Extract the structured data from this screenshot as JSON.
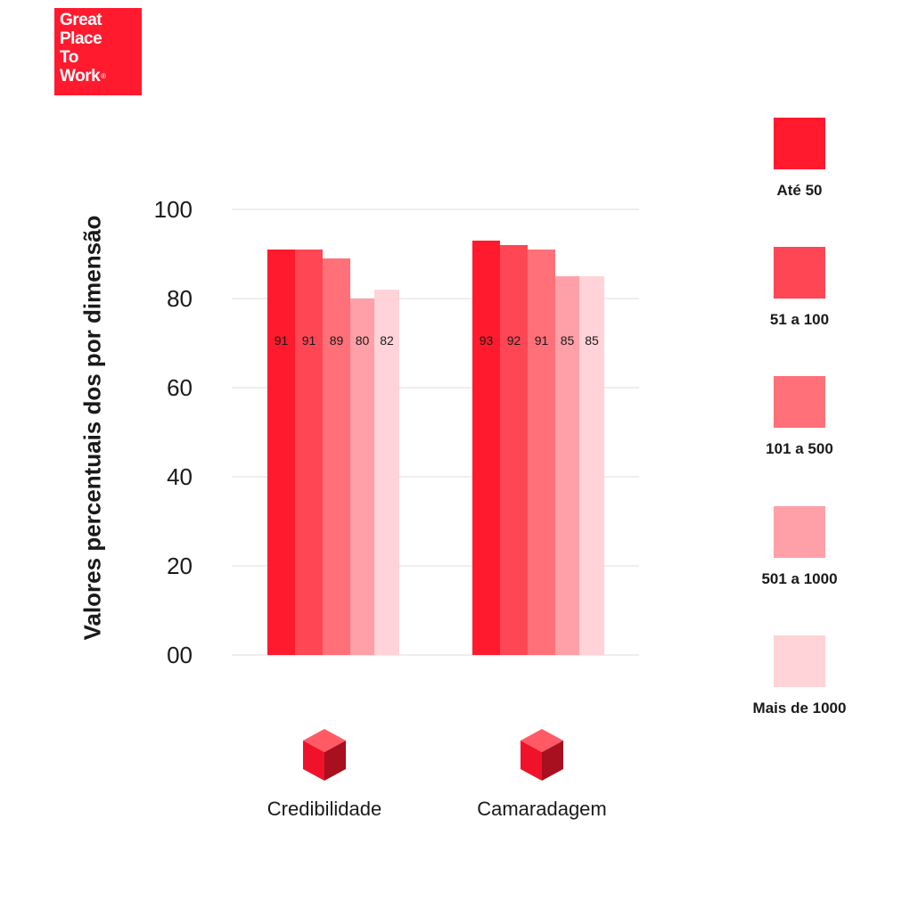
{
  "logo": {
    "line1": "Great",
    "line2": "Place",
    "line3": "To",
    "line4": "Work",
    "reg": "®"
  },
  "colors": {
    "brand": "#ff1a2e",
    "series": [
      "#ff1a2e",
      "#ff4655",
      "#ff7078",
      "#ffa0a8",
      "#ffd3d7"
    ]
  },
  "legend": [
    {
      "label": "Até 50",
      "color": "#ff1a2e"
    },
    {
      "label": "51 a 100",
      "color": "#ff4655"
    },
    {
      "label": "101 a 500",
      "color": "#ff7078"
    },
    {
      "label": "501 a 1000",
      "color": "#ffa0a8"
    },
    {
      "label": "Mais de 1000",
      "color": "#ffd3d7"
    }
  ],
  "category_icons": [
    "cube-icon",
    "cube-icon"
  ],
  "chart_data": {
    "type": "bar",
    "ylabel": "Valores percentuais dos por dimensão",
    "xlabel": "",
    "ylim": [
      0,
      100
    ],
    "yticks": [
      0,
      20,
      40,
      60,
      80,
      100
    ],
    "ytick_labels": [
      "00",
      "20",
      "40",
      "60",
      "80",
      "100"
    ],
    "grid": true,
    "legend_position": "right",
    "categories": [
      "Credibilidade",
      "Camaradagem"
    ],
    "series": [
      {
        "name": "Até 50",
        "values": [
          91,
          93
        ]
      },
      {
        "name": "51 a 100",
        "values": [
          91,
          92
        ]
      },
      {
        "name": "101 a 500",
        "values": [
          89,
          91
        ]
      },
      {
        "name": "501 a 1000",
        "values": [
          80,
          85
        ]
      },
      {
        "name": "Mais de 1000",
        "values": [
          82,
          85
        ]
      }
    ]
  }
}
